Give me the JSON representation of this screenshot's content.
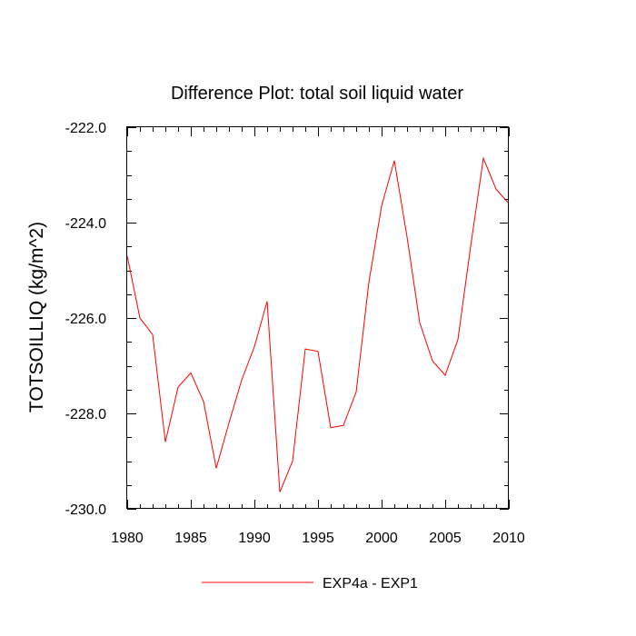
{
  "chart_data": {
    "type": "line",
    "title": "Difference Plot: total soil liquid water",
    "xlabel": "",
    "ylabel": "TOTSOILLIQ  (kg/m^2)",
    "xlim": [
      1980,
      2010
    ],
    "ylim": [
      -230.0,
      -222.0
    ],
    "xticks": [
      1980,
      1985,
      1990,
      1995,
      2000,
      2005,
      2010
    ],
    "xtick_labels": [
      "1980",
      "1985",
      "1990",
      "1995",
      "2000",
      "2005",
      "2010"
    ],
    "yticks": [
      -222.0,
      -224.0,
      -226.0,
      -228.0,
      -230.0
    ],
    "ytick_labels": [
      "-222.0",
      "-224.0",
      "-226.0",
      "-228.0",
      "-230.0"
    ],
    "x_minor_step": 1,
    "y_minor_step": 0.5,
    "grid": false,
    "legend_position": "bottom-center",
    "series": [
      {
        "name": "EXP4a - EXP1",
        "color": "#ff0000",
        "x": [
          1980,
          1981,
          1982,
          1983,
          1984,
          1985,
          1986,
          1987,
          1988,
          1989,
          1990,
          1991,
          1992,
          1993,
          1994,
          1995,
          1996,
          1997,
          1998,
          1999,
          2000,
          2001,
          2002,
          2003,
          2004,
          2005,
          2006,
          2007,
          2008,
          2009,
          2010
        ],
        "values": [
          -224.7,
          -226.0,
          -226.35,
          -228.6,
          -227.45,
          -227.15,
          -227.75,
          -229.15,
          -228.2,
          -227.3,
          -226.6,
          -225.65,
          -229.65,
          -229.0,
          -226.65,
          -226.7,
          -228.3,
          -228.25,
          -227.55,
          -225.25,
          -223.65,
          -222.7,
          -224.3,
          -226.1,
          -226.9,
          -227.2,
          -226.45,
          -224.5,
          -222.65,
          -223.3,
          -223.6
        ]
      }
    ]
  }
}
